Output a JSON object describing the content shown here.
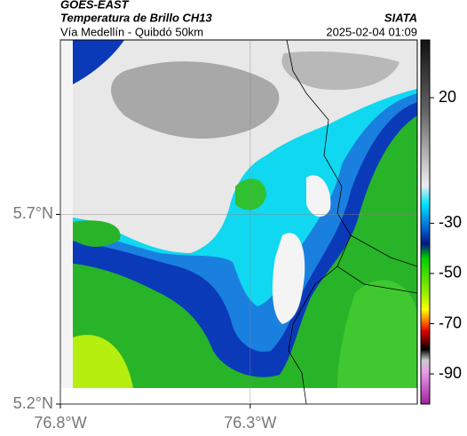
{
  "header": {
    "title": "GOES-EAST",
    "subtitle": "Temperatura de Brillo CH13",
    "region": "Vía Medellín - Quibdó 50km",
    "source": "SIATA",
    "timestamp": "2025-02-04 01:09"
  },
  "map": {
    "lat_lim": [
      5.2,
      6.16
    ],
    "lon_lim": [
      -76.8,
      -75.86
    ],
    "lat_ticks": [
      {
        "value": 5.2,
        "label": "5.2°N"
      },
      {
        "value": 5.7,
        "label": "5.7°N"
      }
    ],
    "lon_ticks": [
      {
        "value": -76.8,
        "label": "76.8°W"
      },
      {
        "value": -76.3,
        "label": "76.3°W"
      }
    ],
    "grid": true
  },
  "colorbar": {
    "lim": [
      -102,
      43
    ],
    "ticks": [
      20,
      -30,
      -50,
      -70,
      -90
    ]
  }
}
